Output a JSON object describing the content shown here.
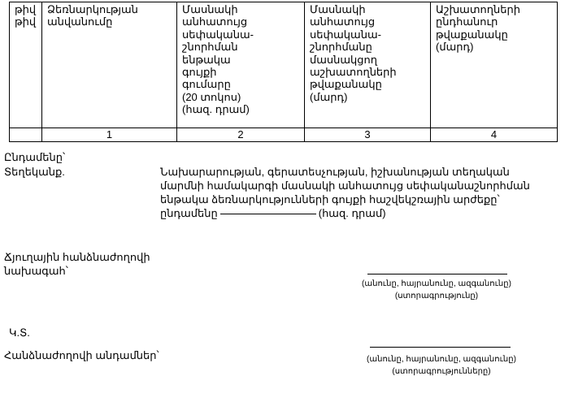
{
  "table": {
    "headers": [
      "թիվ\nթիվ",
      "Ձեռնարկության\nանվանումը",
      "Մասնակի\nանհատույց\nսեփականա-\nշնորհման\nենթակա\nգույքի\nգումարը\n(20 տոկոս)\n(հազ. դրամ)",
      "Մասնակի\nանհատույց\nսեփականա-\nշնորհմանը\nմասնակցող\nաշխատողների\nթվաքանակը\n(մարդ)",
      "Աշխատողների\nընդհանուր\nթվաքանակը\n(մարդ)"
    ],
    "numbers": [
      "",
      "1",
      "2",
      "3",
      "4"
    ]
  },
  "total_label": "Ընդամենը՝",
  "note": {
    "label": "Տեղեկանք.",
    "text": "Նախարարության, գերատեսչության, իշխանության տեղական\nմարմնի համակարգի մասնակի անհատույց սեփականաշնորհման\nենթակա ձեռնարկությունների գույքի հաշվեկշռային արժեքը՝\nընդամենը",
    "unit": "(հազ. դրամ)"
  },
  "chair": {
    "label": "Ճյուղային հանձնաժողովի\nնախագահ՝",
    "caption": "(անունը, հայրանունը, ազգանունը)\n(ստորագրությունը)"
  },
  "seal": "Կ.Տ.",
  "members": {
    "label": "Հանձնաժողովի անդամներ՝",
    "caption": "(անունը, հայրանունը, ազգանունը)\n(ստորագրությունները)"
  }
}
